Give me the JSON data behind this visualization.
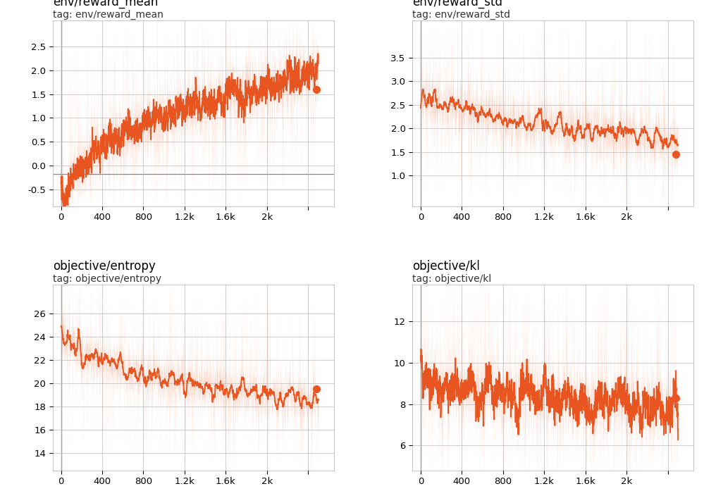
{
  "panels": [
    {
      "title": "env/reward_mean",
      "tag": "tag: env/reward_mean",
      "xlim": [
        -80,
        2650
      ],
      "ylim": [
        -0.85,
        3.05
      ],
      "yticks": [
        -0.5,
        0.0,
        0.5,
        1.0,
        1.5,
        2.0,
        2.5
      ],
      "xticks": [
        0,
        400,
        800,
        1200,
        1600,
        2000,
        2400
      ],
      "xticklabels": [
        "0",
        "400",
        "800",
        "1.2k",
        "1.6k",
        "2k",
        ""
      ],
      "has_hline": true,
      "hline_y": -0.18,
      "endpoint_x": 2480,
      "endpoint_y": 1.6,
      "trend_start": -0.75,
      "trend_end": 1.9,
      "trend_power": 0.45,
      "smooth_noise": 0.28,
      "raw_noise": 0.95,
      "smooth_window": 40,
      "seed": 101
    },
    {
      "title": "env/reward_std",
      "tag": "tag: env/reward_std",
      "xlim": [
        -80,
        2650
      ],
      "ylim": [
        0.35,
        4.3
      ],
      "yticks": [
        1.0,
        1.5,
        2.0,
        2.5,
        3.0,
        3.5
      ],
      "xticks": [
        0,
        400,
        800,
        1200,
        1600,
        2000,
        2400
      ],
      "xticklabels": [
        "0",
        "400",
        "800",
        "1.2k",
        "1.6k",
        "2k",
        ""
      ],
      "has_hline": false,
      "endpoint_x": 2480,
      "endpoint_y": 1.45,
      "trend_start": 2.85,
      "trend_end": 1.75,
      "trend_power": 0.5,
      "smooth_noise": 0.22,
      "raw_noise": 0.75,
      "smooth_window": 35,
      "seed": 202
    },
    {
      "title": "objective/entropy",
      "tag": "tag: objective/entropy",
      "xlim": [
        -80,
        2650
      ],
      "ylim": [
        12.5,
        28.5
      ],
      "yticks": [
        14,
        16,
        18,
        20,
        22,
        24,
        26
      ],
      "xticks": [
        0,
        400,
        800,
        1200,
        1600,
        2000,
        2400
      ],
      "xticklabels": [
        "0",
        "400",
        "800",
        "1.2k",
        "1.6k",
        "2k",
        ""
      ],
      "has_hline": false,
      "endpoint_x": 2480,
      "endpoint_y": 19.5,
      "trend_start": 25.0,
      "trend_end": 18.5,
      "trend_power": 0.38,
      "smooth_noise": 0.9,
      "raw_noise": 2.8,
      "smooth_window": 30,
      "seed": 303
    },
    {
      "title": "objective/kl",
      "tag": "tag: objective/kl",
      "xlim": [
        -80,
        2650
      ],
      "ylim": [
        4.8,
        13.8
      ],
      "yticks": [
        6,
        8,
        10,
        12
      ],
      "xticks": [
        0,
        400,
        800,
        1200,
        1600,
        2000,
        2400
      ],
      "xticklabels": [
        "0",
        "400",
        "800",
        "1.2k",
        "1.6k",
        "2k",
        ""
      ],
      "has_hline": false,
      "endpoint_x": 2480,
      "endpoint_y": 8.3,
      "trend_start": 8.5,
      "trend_end": 8.5,
      "trend_power": 0.5,
      "smooth_noise": 0.75,
      "raw_noise": 2.2,
      "smooth_window": 30,
      "seed": 404
    }
  ],
  "line_color": "#E85520",
  "fill_color": "#F5B8A0",
  "fill_alpha": 0.65,
  "bg_color": "#FFFFFF",
  "grid_color": "#BBBBBB",
  "vline_color": "#777777",
  "hline_color": "#888888",
  "title_fontsize": 12,
  "tick_fontsize": 9.5,
  "fig_width": 9.99,
  "fig_height": 7.14,
  "dpi": 100
}
